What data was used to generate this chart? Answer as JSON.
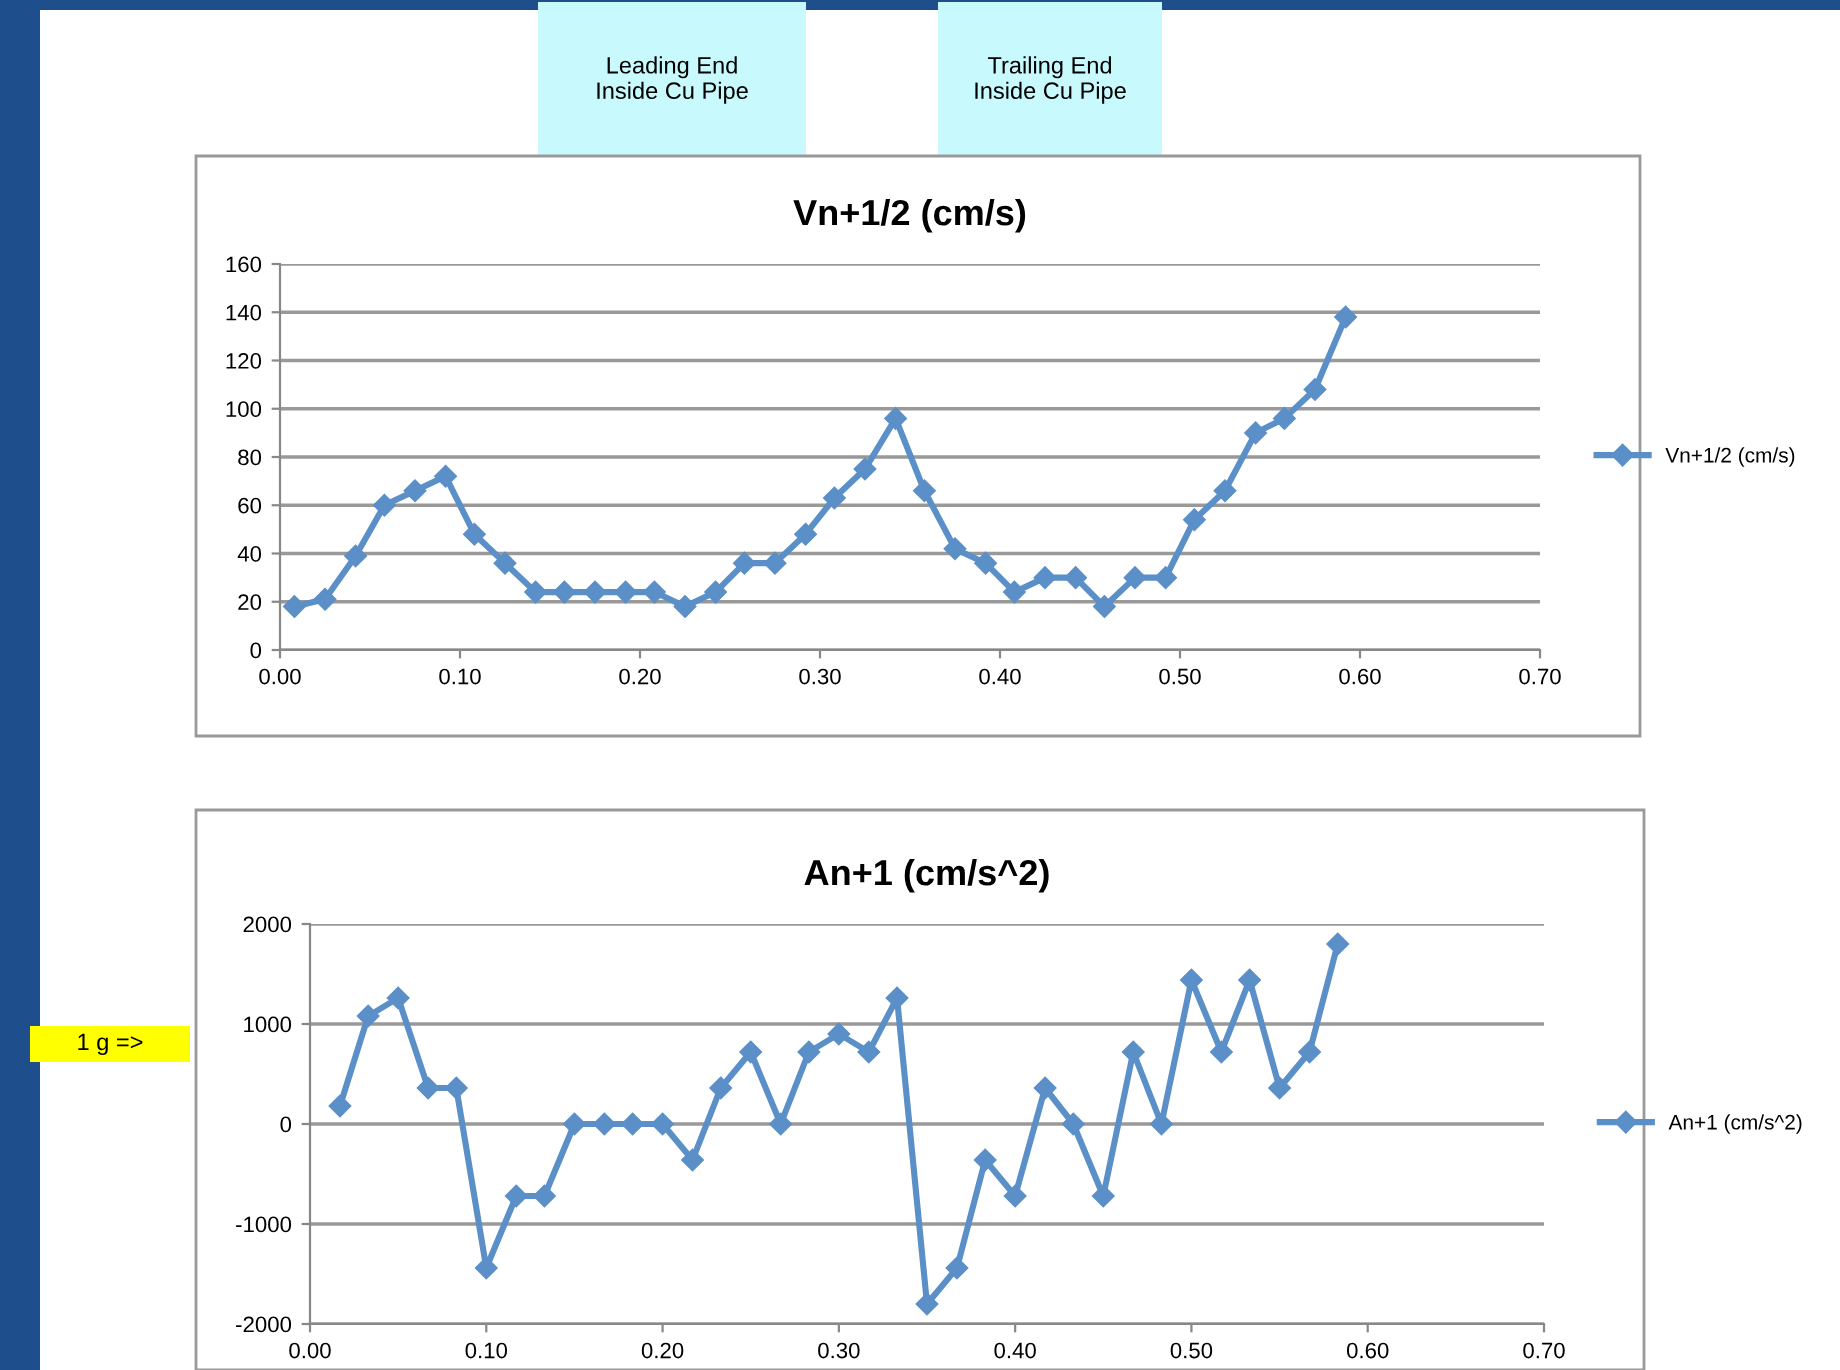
{
  "chart_data": [
    {
      "type": "line",
      "title": "Vn+1/2 (cm/s)",
      "annotations": [
        "Leading End\nInside Cu Pipe",
        "Trailing End\nInside Cu Pipe"
      ],
      "x": [
        0.008,
        0.025,
        0.042,
        0.058,
        0.075,
        0.092,
        0.108,
        0.125,
        0.142,
        0.158,
        0.175,
        0.192,
        0.208,
        0.225,
        0.242,
        0.258,
        0.275,
        0.292,
        0.308,
        0.325,
        0.342,
        0.358,
        0.375,
        0.392,
        0.408,
        0.425,
        0.442,
        0.458,
        0.475,
        0.492,
        0.508,
        0.525,
        0.542,
        0.558,
        0.575,
        0.592
      ],
      "series": [
        {
          "name": "Vn+1/2 (cm/s)",
          "color": "#5b8fc8",
          "values": [
            18,
            21,
            39,
            60,
            66,
            72,
            48,
            36,
            24,
            24,
            24,
            24,
            24,
            18,
            24,
            36,
            36,
            48,
            63,
            75,
            96,
            66,
            42,
            36,
            24,
            30,
            30,
            18,
            30,
            30,
            54,
            66,
            90,
            96,
            108,
            138
          ]
        }
      ],
      "xlim": [
        0,
        0.7
      ],
      "xticks": [
        {
          "value": 0,
          "label": "0.00"
        },
        {
          "value": 0.1,
          "label": "0.10"
        },
        {
          "value": 0.2,
          "label": "0.20"
        },
        {
          "value": 0.3,
          "label": "0.30"
        },
        {
          "value": 0.4,
          "label": "0.40"
        },
        {
          "value": 0.5,
          "label": "0.50"
        },
        {
          "value": 0.6,
          "label": "0.60"
        },
        {
          "value": 0.7,
          "label": "0.70"
        }
      ],
      "ylim": [
        0,
        160
      ],
      "yticks": [
        0,
        20,
        40,
        60,
        80,
        100,
        120,
        140,
        160
      ],
      "grid": "y",
      "legend": "right",
      "marker": "diamond"
    },
    {
      "type": "line",
      "title": "An+1 (cm/s^2)",
      "annotations": [
        "1 g =>"
      ],
      "x": [
        0.017,
        0.033,
        0.05,
        0.067,
        0.083,
        0.1,
        0.117,
        0.133,
        0.15,
        0.167,
        0.183,
        0.2,
        0.217,
        0.233,
        0.25,
        0.267,
        0.283,
        0.3,
        0.317,
        0.333,
        0.35,
        0.367,
        0.383,
        0.4,
        0.417,
        0.433,
        0.45,
        0.467,
        0.483,
        0.5,
        0.517,
        0.533,
        0.55,
        0.567,
        0.583
      ],
      "series": [
        {
          "name": "An+1 (cm/s^2)",
          "color": "#5b8fc8",
          "values": [
            180,
            1080,
            1260,
            360,
            360,
            -1440,
            -720,
            -720,
            0,
            0,
            0,
            0,
            -360,
            360,
            720,
            0,
            720,
            900,
            720,
            1260,
            -1800,
            -1440,
            -360,
            -720,
            360,
            0,
            -720,
            720,
            0,
            1440,
            720,
            1440,
            360,
            720,
            1800
          ]
        }
      ],
      "xlim": [
        0,
        0.7
      ],
      "xticks": [
        {
          "value": 0,
          "label": "0.00"
        },
        {
          "value": 0.1,
          "label": "0.10"
        },
        {
          "value": 0.2,
          "label": "0.20"
        },
        {
          "value": 0.3,
          "label": "0.30"
        },
        {
          "value": 0.4,
          "label": "0.40"
        },
        {
          "value": 0.5,
          "label": "0.50"
        },
        {
          "value": 0.6,
          "label": "0.60"
        },
        {
          "value": 0.7,
          "label": "0.70"
        }
      ],
      "ylim": [
        -2000,
        2000
      ],
      "yticks": [
        -2000,
        -1000,
        0,
        1000,
        2000
      ],
      "grid": "y",
      "legend": "right",
      "marker": "diamond"
    }
  ]
}
